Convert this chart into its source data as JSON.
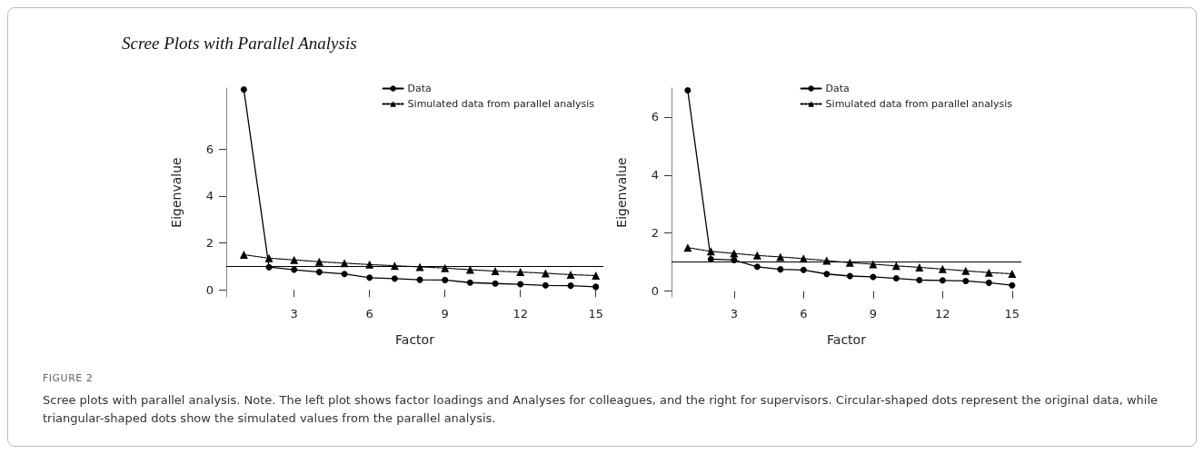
{
  "chart_data": [
    {
      "type": "line",
      "title": "Scree Plots with Parallel Analysis",
      "xlabel": "Factor",
      "ylabel": "Eigenvalue",
      "x": [
        1,
        2,
        3,
        4,
        5,
        6,
        7,
        8,
        9,
        10,
        11,
        12,
        13,
        14,
        15
      ],
      "series": [
        {
          "name": "Data",
          "color": "#000000",
          "marker": "circle",
          "line_style": "solid",
          "values": [
            8.54,
            0.97,
            0.86,
            0.76,
            0.68,
            0.52,
            0.48,
            0.43,
            0.42,
            0.31,
            0.27,
            0.24,
            0.19,
            0.18,
            0.13
          ]
        },
        {
          "name": "Simulated data from parallel analysis",
          "color": "#000000",
          "marker": "triangle",
          "line_style": "dotted",
          "values": [
            1.5,
            1.35,
            1.28,
            1.2,
            1.14,
            1.08,
            1.03,
            0.98,
            0.93,
            0.86,
            0.8,
            0.76,
            0.71,
            0.65,
            0.61
          ]
        }
      ],
      "xlim": [
        0.3,
        15.3
      ],
      "xticks": [
        3,
        6,
        9,
        12,
        15
      ],
      "ylim": [
        -0.3,
        8.6
      ],
      "yticks": [
        0,
        2,
        4,
        6
      ],
      "ref_lines": [
        {
          "axis": "y",
          "value": 1,
          "label": null
        }
      ],
      "legend": "top right",
      "grid": false,
      "annotations": [
        "FIGURE 2",
        "Scree plots with parallel analysis. Note. The left plot shows factor loadings and Analyses for colleagues, and the right for supervisors. Circular-shaped dots represent the original data, while triangular-shaped dots show the simulated values from the parallel analysis."
      ]
    },
    {
      "type": "line",
      "xlabel": "Factor",
      "ylabel": "Eigenvalue",
      "x": [
        1,
        2,
        3,
        4,
        5,
        6,
        7,
        8,
        9,
        10,
        11,
        12,
        13,
        14,
        15
      ],
      "series": [
        {
          "name": "Data",
          "color": "#000000",
          "marker": "circle",
          "line_style": "solid",
          "values": [
            6.92,
            1.1,
            1.07,
            0.84,
            0.75,
            0.73,
            0.59,
            0.52,
            0.49,
            0.44,
            0.38,
            0.37,
            0.35,
            0.29,
            0.2
          ]
        },
        {
          "name": "Simulated data from parallel analysis",
          "color": "#000000",
          "marker": "triangle",
          "line_style": "dotted",
          "values": [
            1.5,
            1.37,
            1.3,
            1.23,
            1.18,
            1.12,
            1.05,
            0.98,
            0.93,
            0.87,
            0.82,
            0.76,
            0.7,
            0.64,
            0.6
          ]
        }
      ],
      "xlim": [
        0.3,
        15.4
      ],
      "xticks": [
        3,
        6,
        9,
        12,
        15
      ],
      "ylim": [
        -0.2,
        7.0
      ],
      "yticks": [
        0,
        2,
        4,
        6
      ],
      "ref_lines": [
        {
          "axis": "y",
          "value": 1,
          "label": null
        }
      ],
      "legend": "top right",
      "grid": false
    }
  ]
}
